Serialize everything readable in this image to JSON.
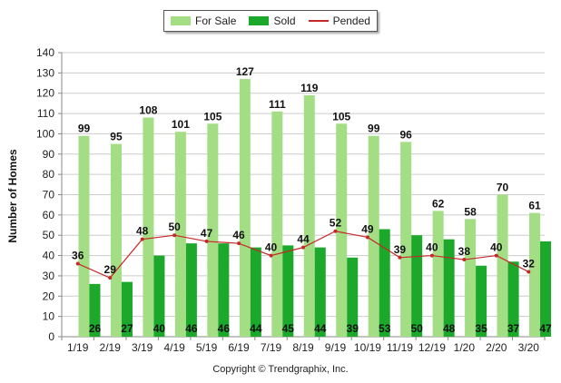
{
  "legend": {
    "for_sale": "For Sale",
    "sold": "Sold",
    "pended": "Pended"
  },
  "ylabel": "Number of Homes",
  "copyright": "Copyright © Trendgraphix, Inc.",
  "colors": {
    "for_sale": "#a3dd84",
    "sold": "#1ba82b",
    "pended": "#c62828",
    "grid": "#cccccc"
  },
  "chart_data": {
    "type": "bar",
    "categories": [
      "1/19",
      "2/19",
      "3/19",
      "4/19",
      "5/19",
      "6/19",
      "7/19",
      "8/19",
      "9/19",
      "10/19",
      "11/19",
      "12/19",
      "1/20",
      "2/20",
      "3/20"
    ],
    "series": [
      {
        "name": "For Sale",
        "type": "bar",
        "values": [
          99,
          95,
          108,
          101,
          105,
          127,
          111,
          119,
          105,
          99,
          96,
          62,
          58,
          70,
          61
        ]
      },
      {
        "name": "Sold",
        "type": "bar",
        "values": [
          26,
          27,
          40,
          46,
          46,
          44,
          45,
          44,
          39,
          53,
          50,
          48,
          35,
          37,
          47
        ]
      },
      {
        "name": "Pended",
        "type": "line",
        "values": [
          36,
          29,
          48,
          50,
          47,
          46,
          40,
          44,
          52,
          49,
          39,
          40,
          38,
          40,
          32
        ]
      }
    ],
    "ylabel": "Number of Homes",
    "xlabel": "",
    "ylim": [
      0,
      140
    ],
    "yticks": [
      0,
      10,
      20,
      30,
      40,
      50,
      60,
      70,
      80,
      90,
      100,
      110,
      120,
      130,
      140
    ],
    "grid": true,
    "legend": "top-center"
  }
}
